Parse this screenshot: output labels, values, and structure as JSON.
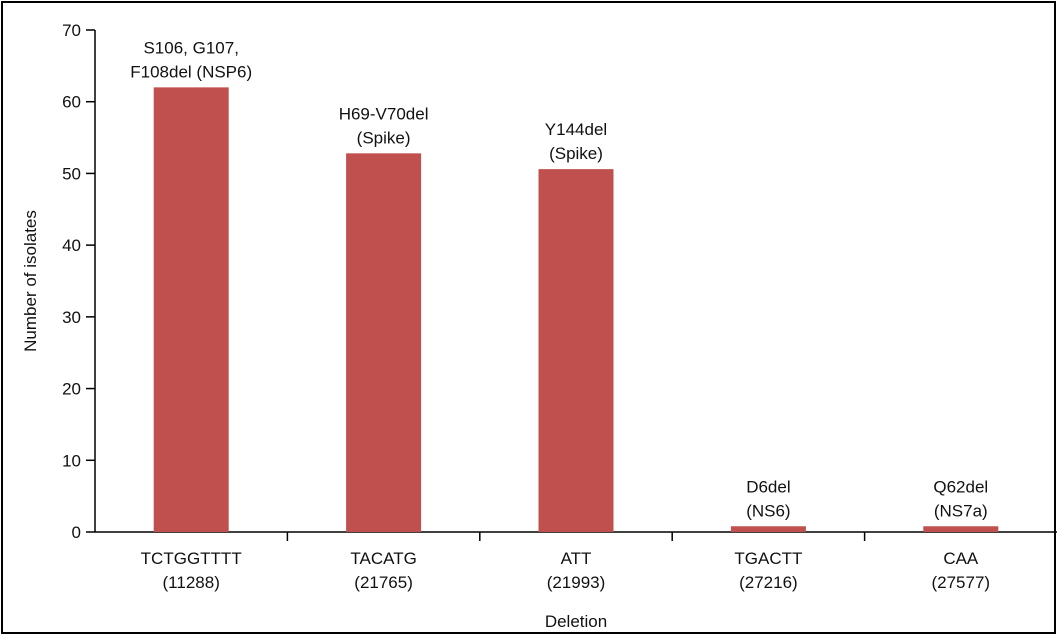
{
  "chart_data": {
    "type": "bar",
    "categories": [
      [
        "TCTGGTTTT",
        "(11288)"
      ],
      [
        "TACATG",
        "(21765)"
      ],
      [
        "ATT",
        "(21993)"
      ],
      [
        "TGACTT",
        "(27216)"
      ],
      [
        "CAA",
        "(27577)"
      ]
    ],
    "values": [
      62,
      52.8,
      50.6,
      0.8,
      0.8
    ],
    "annotations": [
      [
        "S106, G107,",
        "F108del (NSP6)"
      ],
      [
        "H69-V70del",
        "(Spike)"
      ],
      [
        "Y144del",
        "(Spike)"
      ],
      [
        "D6del",
        "(NS6)"
      ],
      [
        "Q62del",
        "(NS7a)"
      ]
    ],
    "xlabel": "Deletion",
    "ylabel": "Number of isolates",
    "ylim": [
      0,
      70
    ],
    "yticks": [
      0,
      10,
      20,
      30,
      40,
      50,
      60,
      70
    ],
    "grid": false,
    "bar_color": "#c0504d"
  }
}
